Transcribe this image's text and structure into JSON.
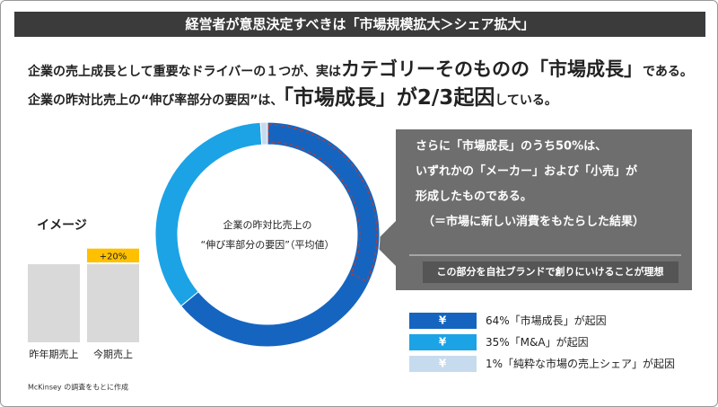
{
  "header": {
    "title": "経営者が意思決定すべきは「市場規模拡大＞シェア拡大」"
  },
  "lead": {
    "line1": [
      "企業の売上成長として重要なドライバーの１つが、実は",
      "カテゴリーそのものの「市場成長」",
      "である。"
    ],
    "line2": [
      "企業の昨対比売上の“伸び率部分の要因”は、",
      "「市場成長」が2/3起因",
      "している。"
    ]
  },
  "callout": {
    "lines": [
      "さらに「市場成長」のうち50%は、",
      "いずれかの「メーカー」および「小売」が",
      "形成したものである。",
      "（＝市場に新しい消費をもたらした結果）"
    ],
    "note": "この部分を自社ブランドで創りにいけることが理想"
  },
  "legend_icon": "¥",
  "source": "McKinsey の調査をもとに作成",
  "chart_data": [
    {
      "type": "donut",
      "title_lines": [
        "企業の昨対比売上の",
        "“伸び率部分の要因”（平均値）"
      ],
      "categories": [
        "「市場成長」が起因",
        "「M&A」が起因",
        "「純粋な市場の売上シェア」が起因"
      ],
      "values": [
        64,
        35,
        1
      ],
      "value_labels": [
        "64%",
        "35%",
        "1%"
      ],
      "colors": [
        "#1565c0",
        "#1ba3e6",
        "#c7dbef"
      ]
    },
    {
      "type": "stacked_bar",
      "title": "イメージ",
      "categories": [
        "昨年期売上",
        "今期売上"
      ],
      "ylim": [
        0,
        130
      ],
      "series": [
        {
          "color": "#d9d9d9",
          "values": [
            100,
            100
          ]
        },
        {
          "color": "#ffc000",
          "values": [
            null,
            20
          ],
          "value_labels": [
            null,
            "+20%"
          ]
        }
      ]
    }
  ]
}
